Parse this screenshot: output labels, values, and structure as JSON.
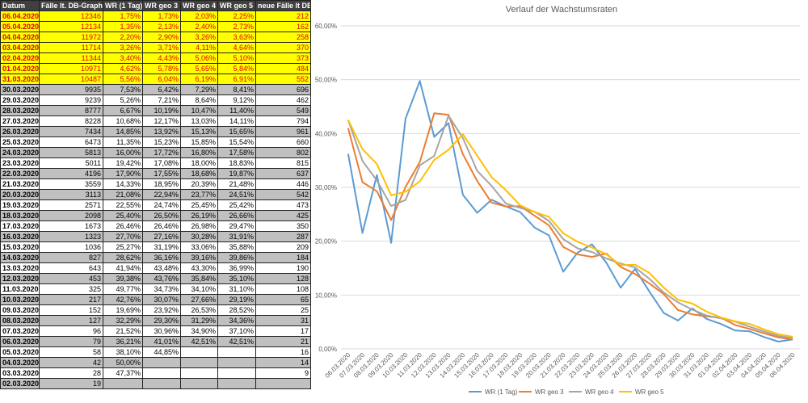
{
  "table": {
    "header": [
      "Datum",
      "Fälle lt. DB-Graph",
      "WR (1 Tag)",
      "WR geo 3",
      "WR geo 4",
      "WR geo 5",
      "neue Fälle lt DB"
    ],
    "rows": [
      [
        "06.04.2020",
        "12346",
        "1,75%",
        "1,73%",
        "2,03%",
        "2,25%",
        "212"
      ],
      [
        "05.04.2020",
        "12134",
        "1,35%",
        "2,13%",
        "2,40%",
        "2,73%",
        "162"
      ],
      [
        "04.04.2020",
        "11972",
        "2,20%",
        "2,90%",
        "3,26%",
        "3,63%",
        "258"
      ],
      [
        "03.04.2020",
        "11714",
        "3,26%",
        "3,71%",
        "4,11%",
        "4,64%",
        "370"
      ],
      [
        "02.04.2020",
        "11344",
        "3,40%",
        "4,43%",
        "5,06%",
        "5,10%",
        "373"
      ],
      [
        "01.04.2020",
        "10971",
        "4,62%",
        "5,78%",
        "5,65%",
        "5,84%",
        "484"
      ],
      [
        "31.03.2020",
        "10487",
        "5,56%",
        "6,04%",
        "6,19%",
        "6,91%",
        "552"
      ],
      [
        "30.03.2020",
        "9935",
        "7,53%",
        "6,42%",
        "7,29%",
        "8,41%",
        "696"
      ],
      [
        "29.03.2020",
        "9239",
        "5,26%",
        "7,21%",
        "8,64%",
        "9,12%",
        "462"
      ],
      [
        "28.03.2020",
        "8777",
        "6,67%",
        "10,19%",
        "10,47%",
        "11,40%",
        "549"
      ],
      [
        "27.03.2020",
        "8228",
        "10,68%",
        "12,17%",
        "13,03%",
        "14,11%",
        "794"
      ],
      [
        "26.03.2020",
        "7434",
        "14,85%",
        "13,92%",
        "15,13%",
        "15,65%",
        "961"
      ],
      [
        "25.03.2020",
        "6473",
        "11,35%",
        "15,23%",
        "15,85%",
        "15,54%",
        "660"
      ],
      [
        "24.03.2020",
        "5813",
        "16,00%",
        "17,72%",
        "16,80%",
        "17,58%",
        "802"
      ],
      [
        "23.03.2020",
        "5011",
        "19,42%",
        "17,08%",
        "18,00%",
        "18,83%",
        "815"
      ],
      [
        "22.03.2020",
        "4196",
        "17,90%",
        "17,55%",
        "18,68%",
        "19,87%",
        "637"
      ],
      [
        "21.03.2020",
        "3559",
        "14,33%",
        "18,95%",
        "20,39%",
        "21,48%",
        "446"
      ],
      [
        "20.03.2020",
        "3113",
        "21,08%",
        "22,94%",
        "23,77%",
        "24,51%",
        "542"
      ],
      [
        "19.03.2020",
        "2571",
        "22,55%",
        "24,74%",
        "25,45%",
        "25,42%",
        "473"
      ],
      [
        "18.03.2020",
        "2098",
        "25,40%",
        "26,50%",
        "26,19%",
        "26,66%",
        "425"
      ],
      [
        "17.03.2020",
        "1673",
        "26,46%",
        "26,46%",
        "26,98%",
        "29,47%",
        "350"
      ],
      [
        "16.03.2020",
        "1323",
        "27,70%",
        "27,16%",
        "30,28%",
        "31,91%",
        "287"
      ],
      [
        "15.03.2020",
        "1036",
        "25,27%",
        "31,19%",
        "33,06%",
        "35,88%",
        "209"
      ],
      [
        "14.03.2020",
        "827",
        "28,62%",
        "36,16%",
        "39,16%",
        "39,86%",
        "184"
      ],
      [
        "13.03.2020",
        "643",
        "41,94%",
        "43,48%",
        "43,30%",
        "36,99%",
        "190"
      ],
      [
        "12.03.2020",
        "453",
        "39,38%",
        "43,76%",
        "35,84%",
        "35,10%",
        "128"
      ],
      [
        "11.03.2020",
        "325",
        "49,77%",
        "34,73%",
        "34,10%",
        "31,10%",
        "108"
      ],
      [
        "10.03.2020",
        "217",
        "42,76%",
        "30,07%",
        "27,66%",
        "29,19%",
        "65"
      ],
      [
        "09.03.2020",
        "152",
        "19,69%",
        "23,92%",
        "26,53%",
        "28,52%",
        "25"
      ],
      [
        "08.03.2020",
        "127",
        "32,29%",
        "29,30%",
        "31,29%",
        "34,36%",
        "31"
      ],
      [
        "07.03.2020",
        "96",
        "21,52%",
        "30,96%",
        "34,90%",
        "37,10%",
        "17"
      ],
      [
        "06.03.2020",
        "79",
        "36,21%",
        "41,01%",
        "42,51%",
        "42,51%",
        "21"
      ],
      [
        "05.03.2020",
        "58",
        "38,10%",
        "44,85%",
        null,
        null,
        "16"
      ],
      [
        "04.03.2020",
        "42",
        "50,00%",
        null,
        null,
        null,
        "14"
      ],
      [
        "03.03.2020",
        "28",
        "47,37%",
        null,
        null,
        null,
        "9"
      ],
      [
        "02.03.2020",
        "19",
        null,
        null,
        null,
        null,
        null
      ]
    ]
  },
  "chart_data": {
    "type": "line",
    "title": "Verlauf der Wachstumsraten",
    "categories": [
      "06.03.2020",
      "07.03.2020",
      "08.03.2020",
      "09.03.2020",
      "10.03.2020",
      "11.03.2020",
      "12.03.2020",
      "13.03.2020",
      "14.03.2020",
      "15.03.2020",
      "16.03.2020",
      "17.03.2020",
      "18.03.2020",
      "19.03.2020",
      "20.03.2020",
      "21.03.2020",
      "22.03.2020",
      "23.03.2020",
      "24.03.2020",
      "25.03.2020",
      "26.03.2020",
      "27.03.2020",
      "28.03.2020",
      "29.03.2020",
      "30.03.2020",
      "31.03.2020",
      "01.04.2020",
      "02.04.2020",
      "03.04.2020",
      "04.04.2020",
      "05.04.2020",
      "06.04.2020"
    ],
    "series": [
      {
        "name": "WR (1 Tag)",
        "color": "#5b9bd5",
        "values": [
          36.21,
          21.52,
          32.29,
          19.69,
          42.76,
          49.77,
          39.38,
          41.94,
          28.62,
          25.27,
          27.7,
          26.46,
          25.4,
          22.55,
          21.08,
          14.33,
          17.9,
          19.42,
          16.0,
          11.35,
          14.85,
          10.68,
          6.67,
          5.26,
          7.53,
          5.56,
          4.62,
          3.4,
          3.26,
          2.2,
          1.35,
          1.75
        ]
      },
      {
        "name": "WR geo 3",
        "color": "#ed7d31",
        "values": [
          41.01,
          30.96,
          29.3,
          23.92,
          30.07,
          34.73,
          43.76,
          43.48,
          36.16,
          31.19,
          27.16,
          26.46,
          26.5,
          24.74,
          22.94,
          18.95,
          17.55,
          17.08,
          17.72,
          15.23,
          13.92,
          12.17,
          10.19,
          7.21,
          6.42,
          6.04,
          5.78,
          4.43,
          3.71,
          2.9,
          2.13,
          1.73
        ]
      },
      {
        "name": "WR geo 4",
        "color": "#a5a5a5",
        "values": [
          42.51,
          34.9,
          31.29,
          26.53,
          27.66,
          34.1,
          35.84,
          43.3,
          39.16,
          33.06,
          30.28,
          26.98,
          26.19,
          25.45,
          23.77,
          20.39,
          18.68,
          18.0,
          16.8,
          15.85,
          15.13,
          13.03,
          10.47,
          8.64,
          7.29,
          6.19,
          5.65,
          5.06,
          4.11,
          3.26,
          2.4,
          2.03
        ]
      },
      {
        "name": "WR geo 5",
        "color": "#ffc000",
        "values": [
          42.51,
          37.1,
          34.36,
          28.52,
          29.19,
          31.1,
          35.1,
          36.99,
          39.86,
          35.88,
          31.91,
          29.47,
          26.66,
          25.42,
          24.51,
          21.48,
          19.87,
          18.83,
          17.58,
          15.54,
          15.65,
          14.11,
          11.4,
          9.12,
          8.41,
          6.91,
          5.84,
          5.1,
          4.64,
          3.63,
          2.73,
          2.25
        ]
      }
    ],
    "ylim": [
      0,
      60
    ],
    "yticks": [
      {
        "value": 0,
        "label": "0,00%"
      },
      {
        "value": 10,
        "label": "10,00%"
      },
      {
        "value": 20,
        "label": "20,00%"
      },
      {
        "value": 30,
        "label": "30,00%"
      },
      {
        "value": 40,
        "label": "40,00%"
      },
      {
        "value": 50,
        "label": "50,00%"
      },
      {
        "value": 60,
        "label": "60,00%"
      }
    ],
    "grid": true,
    "legend": "bottom"
  }
}
